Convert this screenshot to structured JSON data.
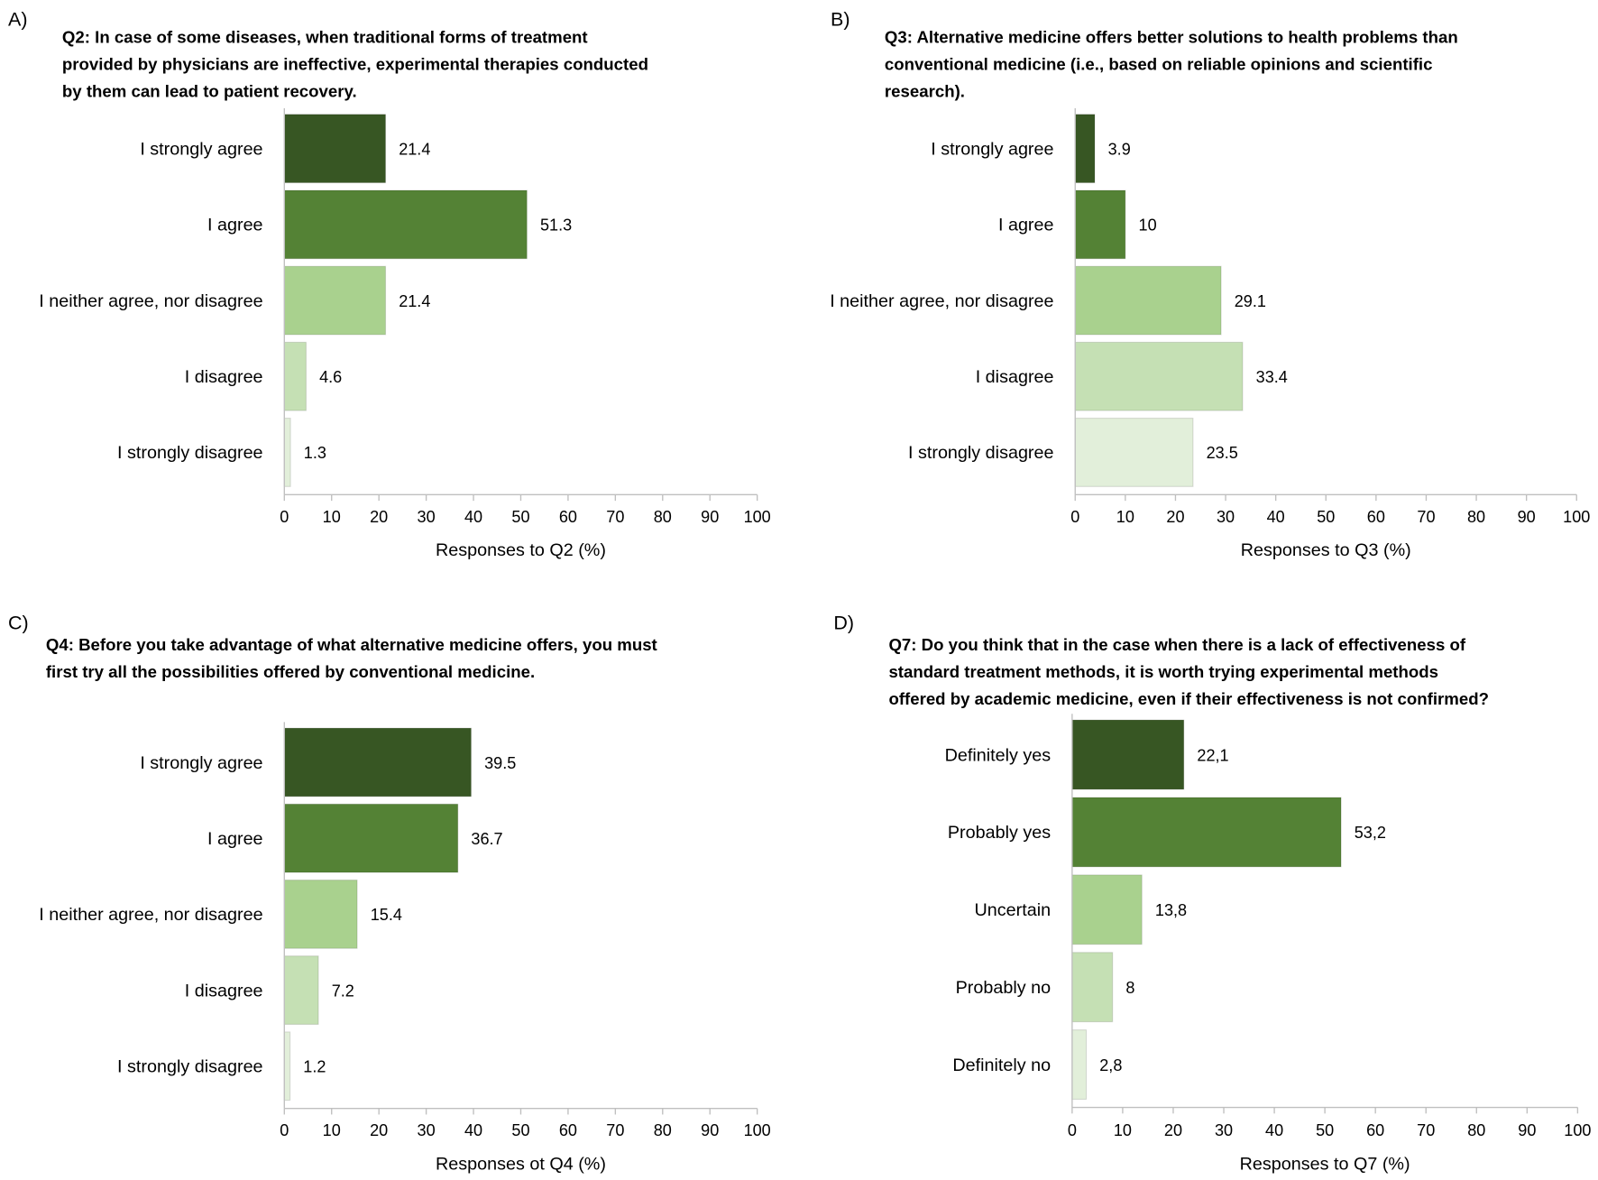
{
  "colors": [
    "#375623",
    "#548235",
    "#A9D18E",
    "#C5E0B4",
    "#E2EFDA"
  ],
  "chart_data": [
    {
      "panel": "A)",
      "type": "bar",
      "orientation": "horizontal",
      "title": [
        "Q2: In case of some diseases, when traditional forms of treatment",
        "provided by physicians are ineffective, experimental therapies conducted",
        "by them can lead to patient recovery."
      ],
      "categories": [
        "I strongly agree",
        "I agree",
        "I neither agree, nor disagree",
        "I disagree",
        "I strongly disagree"
      ],
      "values": [
        21.4,
        51.3,
        21.4,
        4.6,
        1.3
      ],
      "value_labels": [
        "21.4",
        "51.3",
        "21.4",
        "4.6",
        "1.3"
      ],
      "xlabel": "Responses to Q2 (%)",
      "xlim": [
        0,
        100
      ],
      "xticks": [
        "0",
        "10",
        "20",
        "30",
        "40",
        "50",
        "60",
        "70",
        "80",
        "90",
        "100"
      ],
      "grid": false
    },
    {
      "panel": "B)",
      "type": "bar",
      "orientation": "horizontal",
      "title": [
        "Q3: Alternative medicine offers better solutions to health problems than",
        "conventional medicine (i.e., based on reliable opinions and scientific",
        "research)."
      ],
      "categories": [
        "I strongly agree",
        "I agree",
        "I neither agree, nor disagree",
        "I disagree",
        "I strongly disagree"
      ],
      "values": [
        3.9,
        10,
        29.1,
        33.4,
        23.5
      ],
      "value_labels": [
        "3.9",
        "10",
        "29.1",
        "33.4",
        "23.5"
      ],
      "xlabel": "Responses to Q3 (%)",
      "xlim": [
        0,
        100
      ],
      "xticks": [
        "0",
        "10",
        "20",
        "30",
        "40",
        "50",
        "60",
        "70",
        "80",
        "90",
        "100"
      ],
      "grid": false
    },
    {
      "panel": "C)",
      "type": "bar",
      "orientation": "horizontal",
      "title": [
        "Q4: Before you take advantage of what alternative medicine offers, you must",
        "first try all the possibilities offered by conventional medicine."
      ],
      "categories": [
        "I strongly agree",
        "I agree",
        "I neither agree, nor disagree",
        "I disagree",
        "I strongly disagree"
      ],
      "values": [
        39.5,
        36.7,
        15.4,
        7.2,
        1.2
      ],
      "value_labels": [
        "39.5",
        "36.7",
        "15.4",
        "7.2",
        "1.2"
      ],
      "xlabel": "Responses ot Q4 (%)",
      "xlim": [
        0,
        100
      ],
      "xticks": [
        "0",
        "10",
        "20",
        "30",
        "40",
        "50",
        "60",
        "70",
        "80",
        "90",
        "100"
      ],
      "grid": false
    },
    {
      "panel": "D)",
      "type": "bar",
      "orientation": "horizontal",
      "title": [
        "Q7: Do you think that in the case when there is a lack of effectiveness of",
        "standard treatment methods, it is worth trying experimental methods",
        "offered by academic medicine, even if their effectiveness is not confirmed?"
      ],
      "categories": [
        "Definitely yes",
        "Probably yes",
        "Uncertain",
        "Probably no",
        "Definitely no"
      ],
      "values": [
        22.1,
        53.2,
        13.8,
        8,
        2.8
      ],
      "value_labels": [
        "22,1",
        "53,2",
        "13,8",
        "8",
        "2,8"
      ],
      "xlabel": "Responses to Q7 (%)",
      "xlim": [
        0,
        100
      ],
      "xticks": [
        "0",
        "10",
        "20",
        "30",
        "40",
        "50",
        "60",
        "70",
        "80",
        "90",
        "100"
      ],
      "grid": false
    }
  ]
}
